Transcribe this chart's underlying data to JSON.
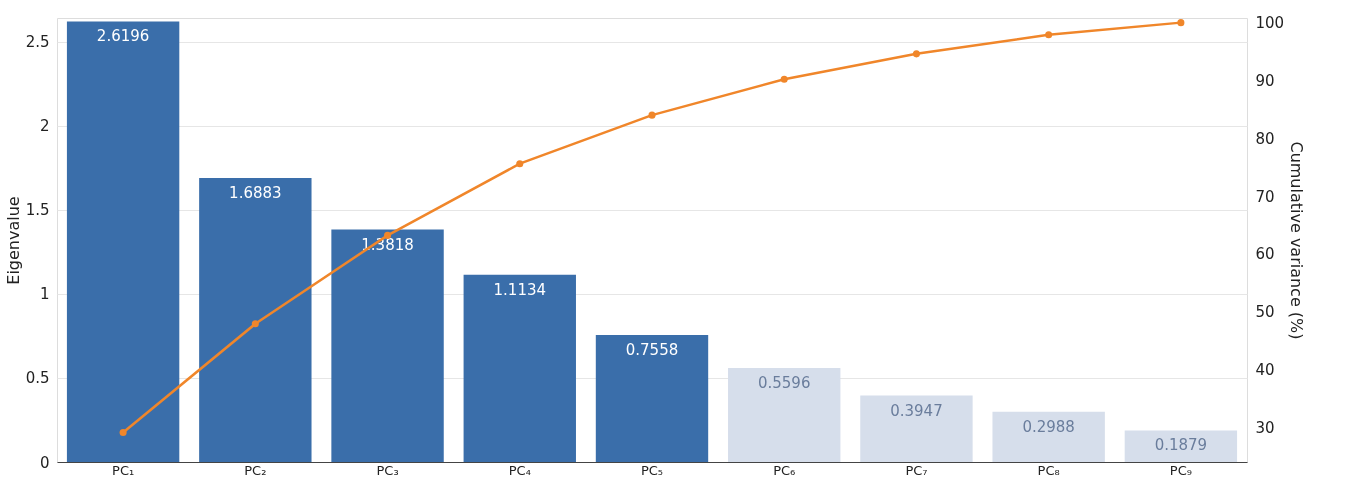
{
  "chart_data": {
    "type": "bar",
    "ylabel": "Eigenvalue",
    "y2label": "Cumulative variance (%)",
    "categories": [
      "PC₁",
      "PC₂",
      "PC₃",
      "PC₄",
      "PC₅",
      "PC₆",
      "PC₇",
      "PC₈",
      "PC₉"
    ],
    "series": [
      {
        "colors": [
          "#3a6eaa",
          "#3a6eaa",
          "#3a6eaa",
          "#3a6eaa",
          "#3a6eaa",
          "#d6deeb",
          "#d6deeb",
          "#d6deeb",
          "#d6deeb"
        ],
        "values": [
          2.6196,
          1.6883,
          1.3818,
          1.1134,
          0.7558,
          0.5596,
          0.3947,
          0.2988,
          0.1879
        ],
        "value_labels": [
          "2.6196",
          "1.6883",
          "1.3818",
          "1.1134",
          "0.7558",
          "0.5596",
          "0.3947",
          "0.2988",
          "0.1879"
        ]
      },
      {
        "type": "line",
        "axis": "y2",
        "color": "#f0862a",
        "marker": "circle",
        "values": [
          29.1,
          47.9,
          63.2,
          75.6,
          84.0,
          90.2,
          94.6,
          97.9,
          100.0
        ]
      }
    ],
    "ylim": [
      0,
      2.64
    ],
    "yticks": [
      0,
      0.5,
      1,
      1.5,
      2,
      2.5
    ],
    "y2lim": [
      24,
      100.8
    ],
    "y2ticks": [
      30,
      40,
      50,
      60,
      70,
      80,
      90,
      100
    ],
    "grid": true
  }
}
